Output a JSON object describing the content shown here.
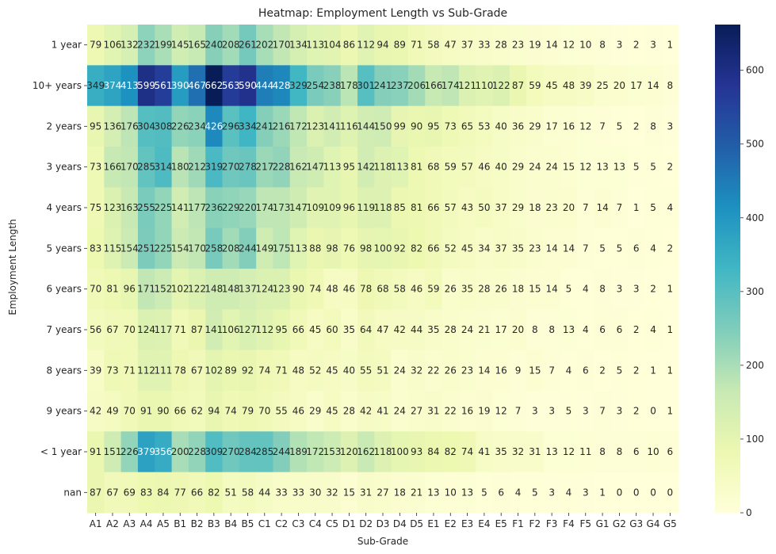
{
  "chart_data": {
    "type": "heatmap",
    "title": "Heatmap: Employment Length vs Sub-Grade",
    "xlabel": "Sub-Grade",
    "ylabel": "Employment Length",
    "x_categories": [
      "A1",
      "A2",
      "A3",
      "A4",
      "A5",
      "B1",
      "B2",
      "B3",
      "B4",
      "B5",
      "C1",
      "C2",
      "C3",
      "C4",
      "C5",
      "D1",
      "D2",
      "D3",
      "D4",
      "D5",
      "E1",
      "E2",
      "E3",
      "E4",
      "E5",
      "F1",
      "F2",
      "F3",
      "F4",
      "F5",
      "G1",
      "G2",
      "G3",
      "G4",
      "G5"
    ],
    "y_categories": [
      "1 year",
      "10+ years",
      "2 years",
      "3 years",
      "4 years",
      "5 years",
      "6 years",
      "7 years",
      "8 years",
      "9 years",
      "< 1 year",
      "nan"
    ],
    "values": [
      [
        79,
        106,
        132,
        232,
        199,
        145,
        165,
        240,
        208,
        261,
        202,
        170,
        134,
        113,
        104,
        86,
        112,
        94,
        89,
        71,
        58,
        47,
        37,
        33,
        28,
        23,
        19,
        14,
        12,
        10,
        8,
        3,
        2,
        3,
        1
      ],
      [
        349,
        374,
        413,
        599,
        561,
        390,
        467,
        662,
        563,
        590,
        444,
        428,
        329,
        254,
        238,
        178,
        301,
        241,
        237,
        206,
        166,
        174,
        121,
        110,
        122,
        87,
        59,
        45,
        48,
        39,
        25,
        20,
        17,
        14,
        8
      ],
      [
        95,
        136,
        176,
        304,
        308,
        226,
        234,
        426,
        296,
        334,
        241,
        216,
        172,
        123,
        141,
        116,
        144,
        150,
        99,
        90,
        95,
        73,
        65,
        53,
        40,
        36,
        29,
        17,
        16,
        12,
        7,
        5,
        2,
        8,
        3
      ],
      [
        73,
        166,
        170,
        285,
        314,
        180,
        212,
        319,
        270,
        278,
        217,
        228,
        162,
        147,
        113,
        95,
        142,
        118,
        113,
        81,
        68,
        59,
        57,
        46,
        40,
        29,
        24,
        24,
        15,
        12,
        13,
        13,
        5,
        5,
        2
      ],
      [
        75,
        123,
        163,
        255,
        225,
        141,
        177,
        236,
        229,
        220,
        174,
        173,
        147,
        109,
        109,
        96,
        119,
        118,
        85,
        81,
        66,
        57,
        43,
        50,
        37,
        29,
        18,
        23,
        20,
        7,
        14,
        7,
        1,
        5,
        4
      ],
      [
        83,
        115,
        154,
        251,
        225,
        154,
        170,
        258,
        208,
        244,
        149,
        175,
        113,
        88,
        98,
        76,
        98,
        100,
        92,
        82,
        66,
        52,
        45,
        34,
        37,
        35,
        23,
        14,
        14,
        7,
        5,
        5,
        6,
        4,
        2
      ],
      [
        70,
        81,
        96,
        171,
        152,
        102,
        122,
        148,
        148,
        137,
        124,
        123,
        90,
        74,
        48,
        46,
        78,
        68,
        58,
        46,
        59,
        26,
        35,
        28,
        26,
        18,
        15,
        14,
        5,
        4,
        8,
        3,
        3,
        2,
        1
      ],
      [
        56,
        67,
        70,
        124,
        117,
        71,
        87,
        141,
        106,
        127,
        112,
        95,
        66,
        45,
        60,
        35,
        64,
        47,
        42,
        44,
        35,
        28,
        24,
        21,
        17,
        20,
        8,
        8,
        13,
        4,
        6,
        6,
        2,
        4,
        1
      ],
      [
        39,
        73,
        71,
        112,
        111,
        78,
        67,
        102,
        89,
        92,
        74,
        71,
        48,
        52,
        45,
        40,
        55,
        51,
        24,
        32,
        22,
        26,
        23,
        14,
        16,
        9,
        15,
        7,
        4,
        6,
        2,
        5,
        2,
        1,
        1
      ],
      [
        42,
        49,
        70,
        91,
        90,
        66,
        62,
        94,
        74,
        79,
        70,
        55,
        46,
        29,
        45,
        28,
        42,
        41,
        24,
        27,
        31,
        22,
        16,
        19,
        12,
        7,
        3,
        3,
        5,
        3,
        7,
        3,
        2,
        0,
        1
      ],
      [
        91,
        151,
        226,
        379,
        356,
        200,
        228,
        309,
        270,
        284,
        285,
        244,
        189,
        172,
        153,
        120,
        162,
        118,
        100,
        93,
        84,
        82,
        74,
        41,
        35,
        32,
        31,
        13,
        12,
        11,
        8,
        8,
        6,
        10,
        6
      ],
      [
        87,
        67,
        69,
        83,
        84,
        77,
        66,
        82,
        51,
        58,
        44,
        33,
        33,
        30,
        32,
        15,
        31,
        27,
        18,
        21,
        13,
        10,
        13,
        5,
        6,
        4,
        5,
        3,
        4,
        3,
        1,
        0,
        0,
        0,
        0
      ]
    ],
    "colormap": "YlGnBu",
    "vmin": 0,
    "vmax": 662,
    "colorbar_ticks": [
      0,
      100,
      200,
      300,
      400,
      500,
      600
    ],
    "annotations": true,
    "grid": false
  }
}
